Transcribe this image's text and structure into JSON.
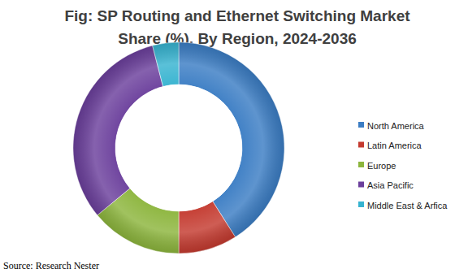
{
  "chart_data": {
    "type": "pie",
    "donut": true,
    "title": "Fig: SP Routing and Ethernet Switching Market Share (%), By Region, 2024-2036",
    "categories": [
      "North America",
      "Latin America",
      "Europe",
      "Asia Pacific",
      "Middle East & Arfica"
    ],
    "values": [
      41,
      9,
      14,
      32,
      4
    ],
    "colors": [
      "#3b7dc4",
      "#c43a2f",
      "#8cb53c",
      "#6b3f9c",
      "#36b3d0"
    ],
    "legend": "right",
    "source": "Source: Research Nester"
  }
}
